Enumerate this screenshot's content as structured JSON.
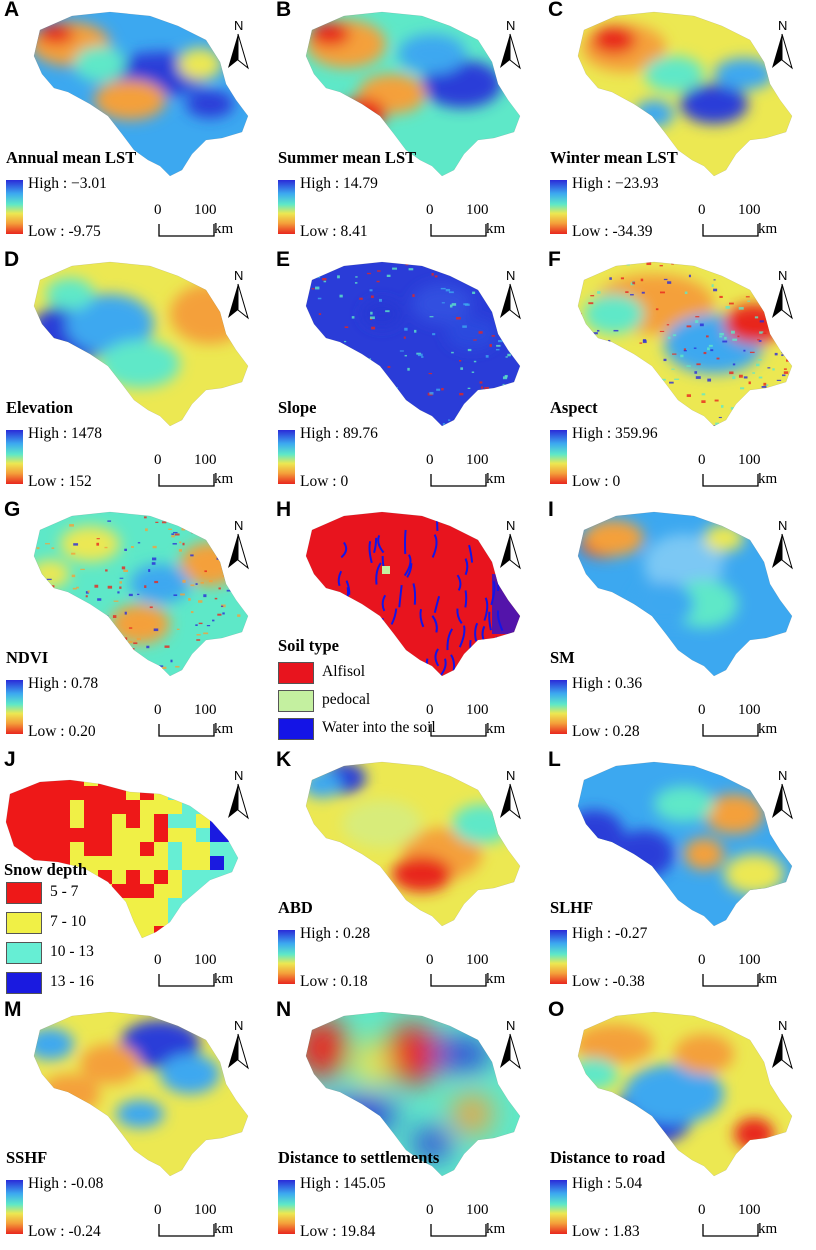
{
  "north_label": "N",
  "scale": {
    "zero": "0",
    "distance": "100",
    "unit": "km"
  },
  "gradient_colors": [
    "#2a2ad8",
    "#3ca8f0",
    "#5ee8c8",
    "#ece852",
    "#f4a03a",
    "#e8261e"
  ],
  "panels": [
    {
      "letter": "A",
      "title": "Annual mean LST",
      "high": "High : −3.01",
      "low": "Low : -9.75"
    },
    {
      "letter": "B",
      "title": "Summer mean LST",
      "high": "High : 14.79",
      "low": "Low : 8.41"
    },
    {
      "letter": "C",
      "title": "Winter mean LST",
      "high": "High : −23.93",
      "low": "Low : -34.39"
    },
    {
      "letter": "D",
      "title": "Elevation",
      "high": "High : 1478",
      "low": "Low : 152"
    },
    {
      "letter": "E",
      "title": "Slope",
      "high": "High : 89.76",
      "low": "Low : 0"
    },
    {
      "letter": "F",
      "title": "Aspect",
      "high": "High : 359.96",
      "low": "Low : 0"
    },
    {
      "letter": "G",
      "title": "NDVI",
      "high": "High : 0.78",
      "low": "Low : 0.20"
    },
    {
      "letter": "H",
      "title": "Soil type",
      "classes": [
        {
          "label": "Alfisol",
          "color": "#e8141e"
        },
        {
          "label": "pedocal",
          "color": "#c4f0a0"
        },
        {
          "label": "Water into the soil",
          "color": "#1414e6"
        }
      ]
    },
    {
      "letter": "I",
      "title": "SM",
      "high": "High : 0.36",
      "low": "Low : 0.28"
    },
    {
      "letter": "J",
      "title": "Snow depth",
      "classes": [
        {
          "label": "5 - 7",
          "color": "#ee1818"
        },
        {
          "label": "7 - 10",
          "color": "#f0f046"
        },
        {
          "label": "10 - 13",
          "color": "#66eed4"
        },
        {
          "label": "13 - 16",
          "color": "#1a1ae0"
        }
      ]
    },
    {
      "letter": "K",
      "title": "ABD",
      "high": "High : 0.28",
      "low": "Low : 0.18"
    },
    {
      "letter": "L",
      "title": "SLHF",
      "high": "High : -0.27",
      "low": "Low : -0.38"
    },
    {
      "letter": "M",
      "title": "SSHF",
      "high": "High : -0.08",
      "low": "Low : -0.24"
    },
    {
      "letter": "N",
      "title": "Distance to settlements",
      "high": "High : 145.05",
      "low": "Low : 19.84"
    },
    {
      "letter": "O",
      "title": "Distance to road",
      "high": "High : 5.04",
      "low": "Low : 1.83"
    }
  ]
}
